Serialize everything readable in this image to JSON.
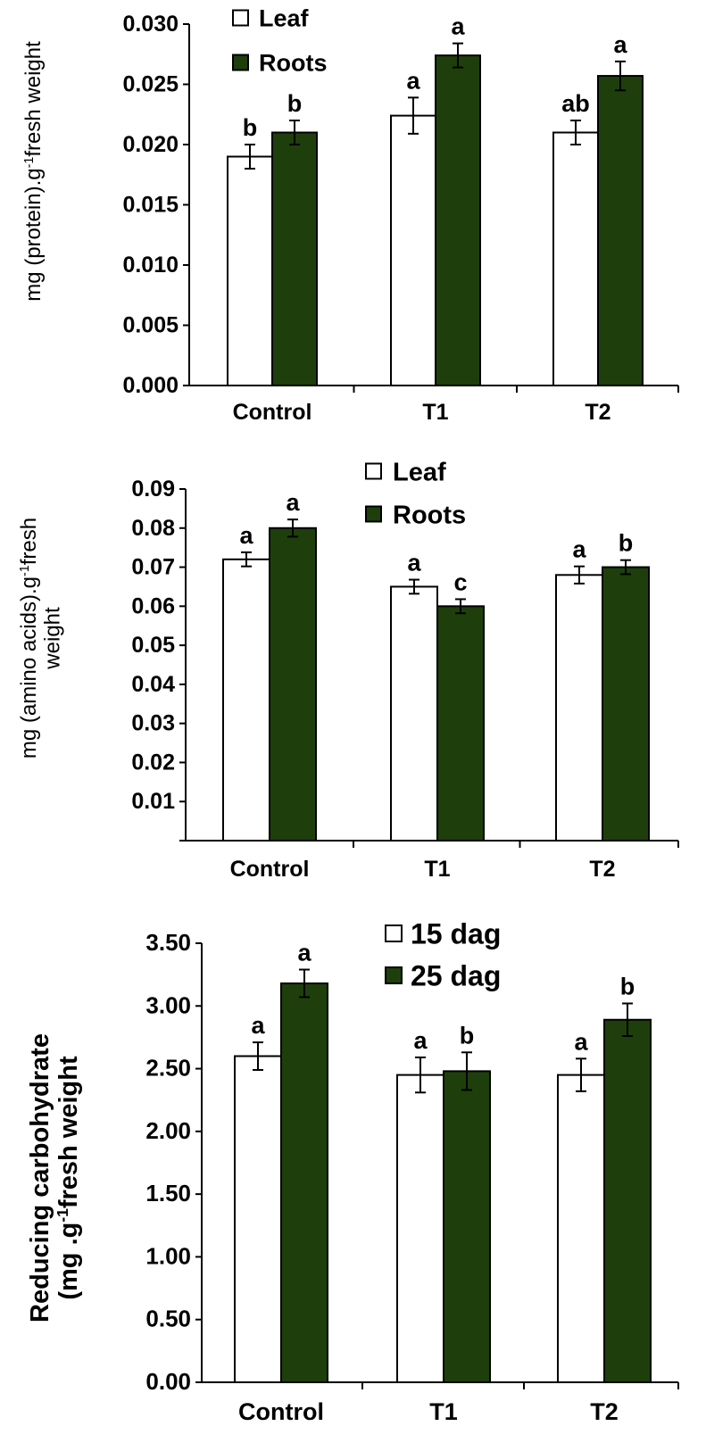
{
  "colors": {
    "series1": "#ffffff",
    "series2": "#1e3f0c",
    "stroke": "#000000"
  },
  "chart_data": [
    {
      "type": "bar",
      "categories": [
        "Control",
        "T1",
        "T2"
      ],
      "ylabel_lines": [
        "mg (protein).g",
        "-1",
        "fresh weight"
      ],
      "yticks": [
        "0.000",
        "0.005",
        "0.010",
        "0.015",
        "0.020",
        "0.025",
        "0.030"
      ],
      "ylim": [
        0,
        0.03
      ],
      "legend_placement": "top-left",
      "series": [
        {
          "name": "Leaf",
          "values": [
            0.019,
            0.0224,
            0.021
          ],
          "errors": [
            0.001,
            0.0015,
            0.001
          ],
          "letters": [
            "b",
            "a",
            "ab"
          ]
        },
        {
          "name": "Roots",
          "values": [
            0.021,
            0.0274,
            0.0257
          ],
          "errors": [
            0.001,
            0.001,
            0.0012
          ],
          "letters": [
            "b",
            "a",
            "a"
          ]
        }
      ]
    },
    {
      "type": "bar",
      "categories": [
        "Control",
        "T1",
        "T2"
      ],
      "ylabel_lines": [
        "mg (amino acids).g",
        "-1",
        "fresh",
        "weight"
      ],
      "yticks": [
        "",
        "0.01",
        "0.02",
        "0.03",
        "0.04",
        "0.05",
        "0.06",
        "0.07",
        "0.08",
        "0.09"
      ],
      "ylim": [
        0,
        0.09
      ],
      "legend_placement": "top-center",
      "series": [
        {
          "name": "Leaf",
          "values": [
            0.072,
            0.065,
            0.068
          ],
          "errors": [
            0.0018,
            0.0018,
            0.0022
          ],
          "letters": [
            "a",
            "a",
            "a"
          ]
        },
        {
          "name": "Roots",
          "values": [
            0.08,
            0.06,
            0.07
          ],
          "errors": [
            0.0022,
            0.0018,
            0.0018
          ],
          "letters": [
            "a",
            "c",
            "b"
          ]
        }
      ]
    },
    {
      "type": "bar",
      "categories": [
        "Control",
        "T1",
        "T2"
      ],
      "ylabel_lines": [
        "Reducing carbohydrate",
        "(mg .g",
        "-1",
        "fresh weight"
      ],
      "yticks": [
        "0.00",
        "0.50",
        "1.00",
        "1.50",
        "2.00",
        "2.50",
        "3.00",
        "3.50"
      ],
      "ylim": [
        0,
        3.5
      ],
      "legend_placement": "top-center",
      "series": [
        {
          "name": "15 dag",
          "values": [
            2.6,
            2.45,
            2.45
          ],
          "errors": [
            0.11,
            0.14,
            0.13
          ],
          "letters": [
            "a",
            "a",
            "a"
          ]
        },
        {
          "name": "25 dag",
          "values": [
            3.18,
            2.48,
            2.89
          ],
          "errors": [
            0.11,
            0.15,
            0.13
          ],
          "letters": [
            "a",
            "b",
            "b"
          ]
        }
      ]
    }
  ]
}
